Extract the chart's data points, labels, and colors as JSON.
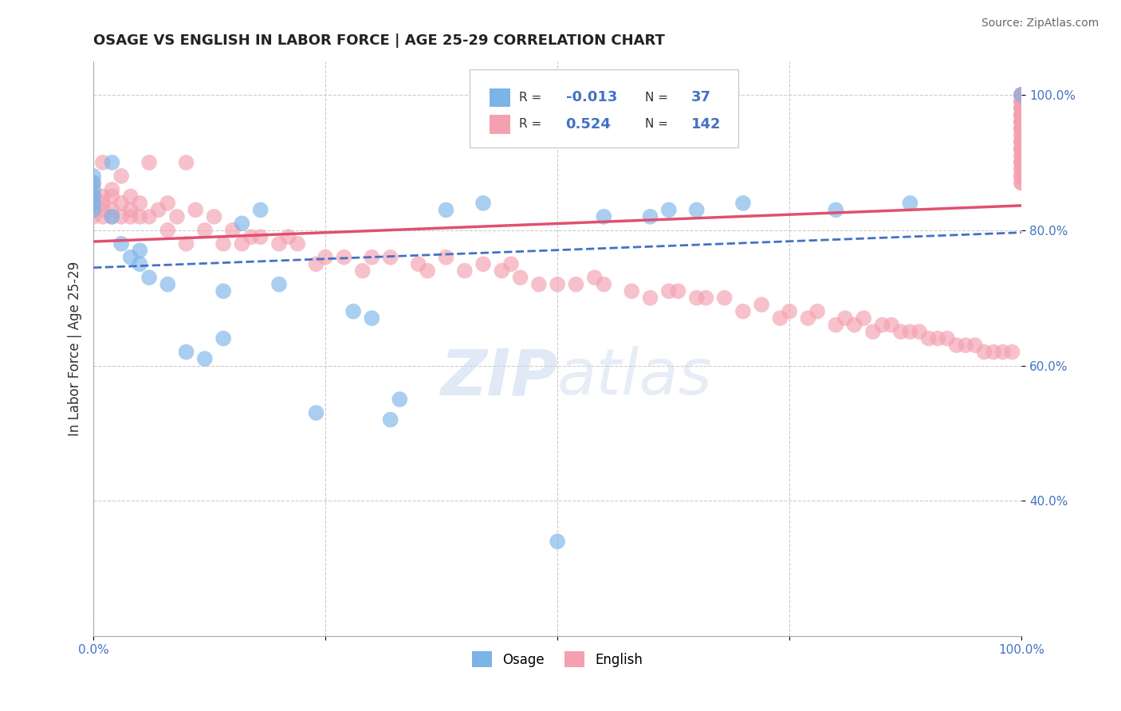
{
  "title": "OSAGE VS ENGLISH IN LABOR FORCE | AGE 25-29 CORRELATION CHART",
  "source": "Source: ZipAtlas.com",
  "ylabel": "In Labor Force | Age 25-29",
  "xlim": [
    0.0,
    1.0
  ],
  "ylim": [
    0.2,
    1.05
  ],
  "grid_color": "#cccccc",
  "background_color": "#ffffff",
  "osage_color": "#7cb4e8",
  "english_color": "#f4a0b0",
  "osage_R": -0.013,
  "osage_N": 37,
  "english_R": 0.524,
  "english_N": 142,
  "osage_line_color": "#4472c4",
  "english_line_color": "#e05070",
  "watermark_zip": "ZIP",
  "watermark_atlas": "atlas",
  "osage_x": [
    0.0,
    0.0,
    0.0,
    0.0,
    0.0,
    0.0,
    0.02,
    0.02,
    0.03,
    0.04,
    0.05,
    0.05,
    0.06,
    0.08,
    0.1,
    0.12,
    0.14,
    0.14,
    0.16,
    0.18,
    0.2,
    0.24,
    0.28,
    0.3,
    0.32,
    0.33,
    0.38,
    0.42,
    0.5,
    0.55,
    0.6,
    0.62,
    0.65,
    0.7,
    0.8,
    0.88,
    1.0
  ],
  "osage_y": [
    0.87,
    0.88,
    0.85,
    0.86,
    0.84,
    0.83,
    0.9,
    0.82,
    0.78,
    0.76,
    0.77,
    0.75,
    0.73,
    0.72,
    0.62,
    0.61,
    0.71,
    0.64,
    0.81,
    0.83,
    0.72,
    0.53,
    0.68,
    0.67,
    0.52,
    0.55,
    0.83,
    0.84,
    0.34,
    0.82,
    0.82,
    0.83,
    0.83,
    0.84,
    0.83,
    0.84,
    1.0
  ],
  "english_x": [
    0.0,
    0.0,
    0.0,
    0.0,
    0.01,
    0.01,
    0.01,
    0.01,
    0.01,
    0.02,
    0.02,
    0.02,
    0.02,
    0.03,
    0.03,
    0.03,
    0.04,
    0.04,
    0.04,
    0.05,
    0.05,
    0.06,
    0.06,
    0.07,
    0.08,
    0.08,
    0.09,
    0.1,
    0.1,
    0.11,
    0.12,
    0.13,
    0.14,
    0.15,
    0.16,
    0.17,
    0.18,
    0.2,
    0.21,
    0.22,
    0.24,
    0.25,
    0.27,
    0.29,
    0.3,
    0.32,
    0.35,
    0.36,
    0.38,
    0.4,
    0.42,
    0.44,
    0.45,
    0.46,
    0.48,
    0.5,
    0.52,
    0.54,
    0.55,
    0.58,
    0.6,
    0.62,
    0.63,
    0.65,
    0.66,
    0.68,
    0.7,
    0.72,
    0.74,
    0.75,
    0.77,
    0.78,
    0.8,
    0.81,
    0.82,
    0.83,
    0.84,
    0.85,
    0.86,
    0.87,
    0.88,
    0.89,
    0.9,
    0.91,
    0.92,
    0.93,
    0.94,
    0.95,
    0.96,
    0.97,
    0.98,
    0.99,
    1.0,
    1.0,
    1.0,
    1.0,
    1.0,
    1.0,
    1.0,
    1.0,
    1.0,
    1.0,
    1.0,
    1.0,
    1.0,
    1.0,
    1.0,
    1.0,
    1.0,
    1.0,
    1.0,
    1.0,
    1.0,
    1.0,
    1.0,
    1.0,
    1.0,
    1.0,
    1.0,
    1.0,
    1.0,
    1.0,
    1.0,
    1.0,
    1.0,
    1.0,
    1.0,
    1.0,
    1.0,
    1.0,
    1.0,
    1.0,
    1.0,
    1.0,
    1.0,
    1.0,
    1.0,
    1.0
  ],
  "english_y": [
    0.82,
    0.83,
    0.85,
    0.87,
    0.82,
    0.83,
    0.84,
    0.85,
    0.9,
    0.82,
    0.83,
    0.85,
    0.86,
    0.82,
    0.84,
    0.88,
    0.82,
    0.83,
    0.85,
    0.82,
    0.84,
    0.82,
    0.9,
    0.83,
    0.8,
    0.84,
    0.82,
    0.78,
    0.9,
    0.83,
    0.8,
    0.82,
    0.78,
    0.8,
    0.78,
    0.79,
    0.79,
    0.78,
    0.79,
    0.78,
    0.75,
    0.76,
    0.76,
    0.74,
    0.76,
    0.76,
    0.75,
    0.74,
    0.76,
    0.74,
    0.75,
    0.74,
    0.75,
    0.73,
    0.72,
    0.72,
    0.72,
    0.73,
    0.72,
    0.71,
    0.7,
    0.71,
    0.71,
    0.7,
    0.7,
    0.7,
    0.68,
    0.69,
    0.67,
    0.68,
    0.67,
    0.68,
    0.66,
    0.67,
    0.66,
    0.67,
    0.65,
    0.66,
    0.66,
    0.65,
    0.65,
    0.65,
    0.64,
    0.64,
    0.64,
    0.63,
    0.63,
    0.63,
    0.62,
    0.62,
    0.62,
    0.62,
    0.94,
    0.93,
    0.92,
    0.91,
    0.9,
    0.95,
    0.88,
    0.88,
    0.87,
    0.87,
    0.9,
    0.89,
    0.95,
    0.94,
    0.96,
    0.92,
    0.93,
    0.97,
    0.91,
    0.98,
    0.95,
    0.99,
    0.93,
    0.88,
    0.9,
    0.89,
    0.92,
    0.97,
    0.95,
    0.96,
    0.97,
    0.98,
    0.99,
    1.0,
    1.0,
    1.0,
    0.98,
    0.97,
    0.96,
    0.95,
    0.99,
    0.98,
    1.0,
    1.0,
    0.97,
    0.96
  ]
}
